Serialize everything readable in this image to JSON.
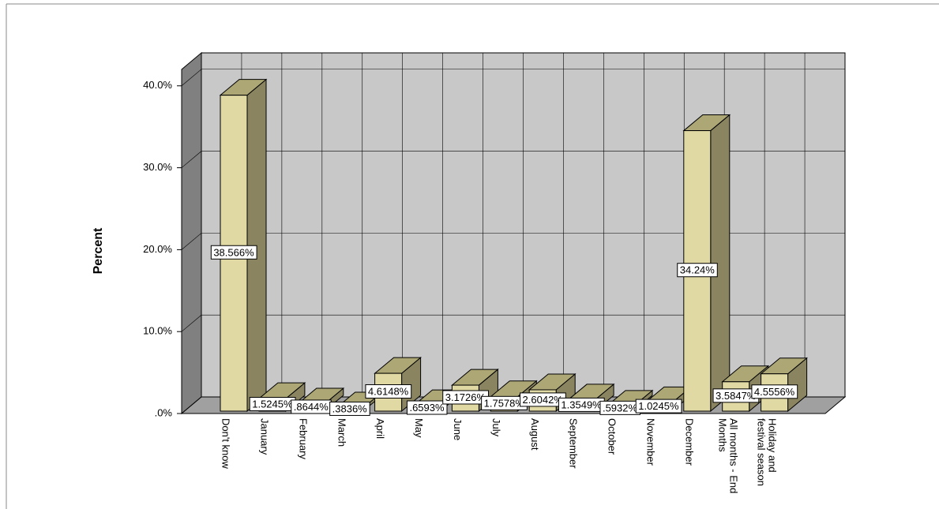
{
  "chart_data": {
    "type": "bar3d",
    "y_label": "Percent",
    "categories": [
      "Don't know",
      "January",
      "February",
      "March",
      "April",
      "May",
      "June",
      "July",
      "August",
      "September",
      "October",
      "November",
      "December",
      "All months - End Months",
      "Holiday and festival season"
    ],
    "values": [
      38.566,
      1.5245,
      0.8644,
      0.3836,
      4.6148,
      0.6593,
      3.1726,
      1.7578,
      2.6042,
      1.3549,
      0.5932,
      1.0245,
      34.24,
      3.5847,
      4.5556
    ],
    "value_labels": [
      "38.566%",
      "1.5245%",
      ".8644%",
      ".3836%",
      "4.6148%",
      ".6593%",
      "3.1726%",
      "1.7578%",
      "2.6042%",
      "1.3549%",
      ".5932%",
      "1.0245%",
      "34.24%",
      "3.5847%",
      "4.5556%"
    ],
    "colors": {
      "front": "#e1d9a3",
      "side": "#8a8560",
      "top": "#aca775"
    },
    "ylim": [
      0,
      42
    ],
    "yticks": [
      {
        "value": 0,
        "label": ".0%"
      },
      {
        "value": 10,
        "label": "10.0%"
      },
      {
        "value": 20,
        "label": "20.0%"
      },
      {
        "value": 30,
        "label": "30.0%"
      },
      {
        "value": 40,
        "label": "40.0%"
      }
    ],
    "grid": true
  }
}
